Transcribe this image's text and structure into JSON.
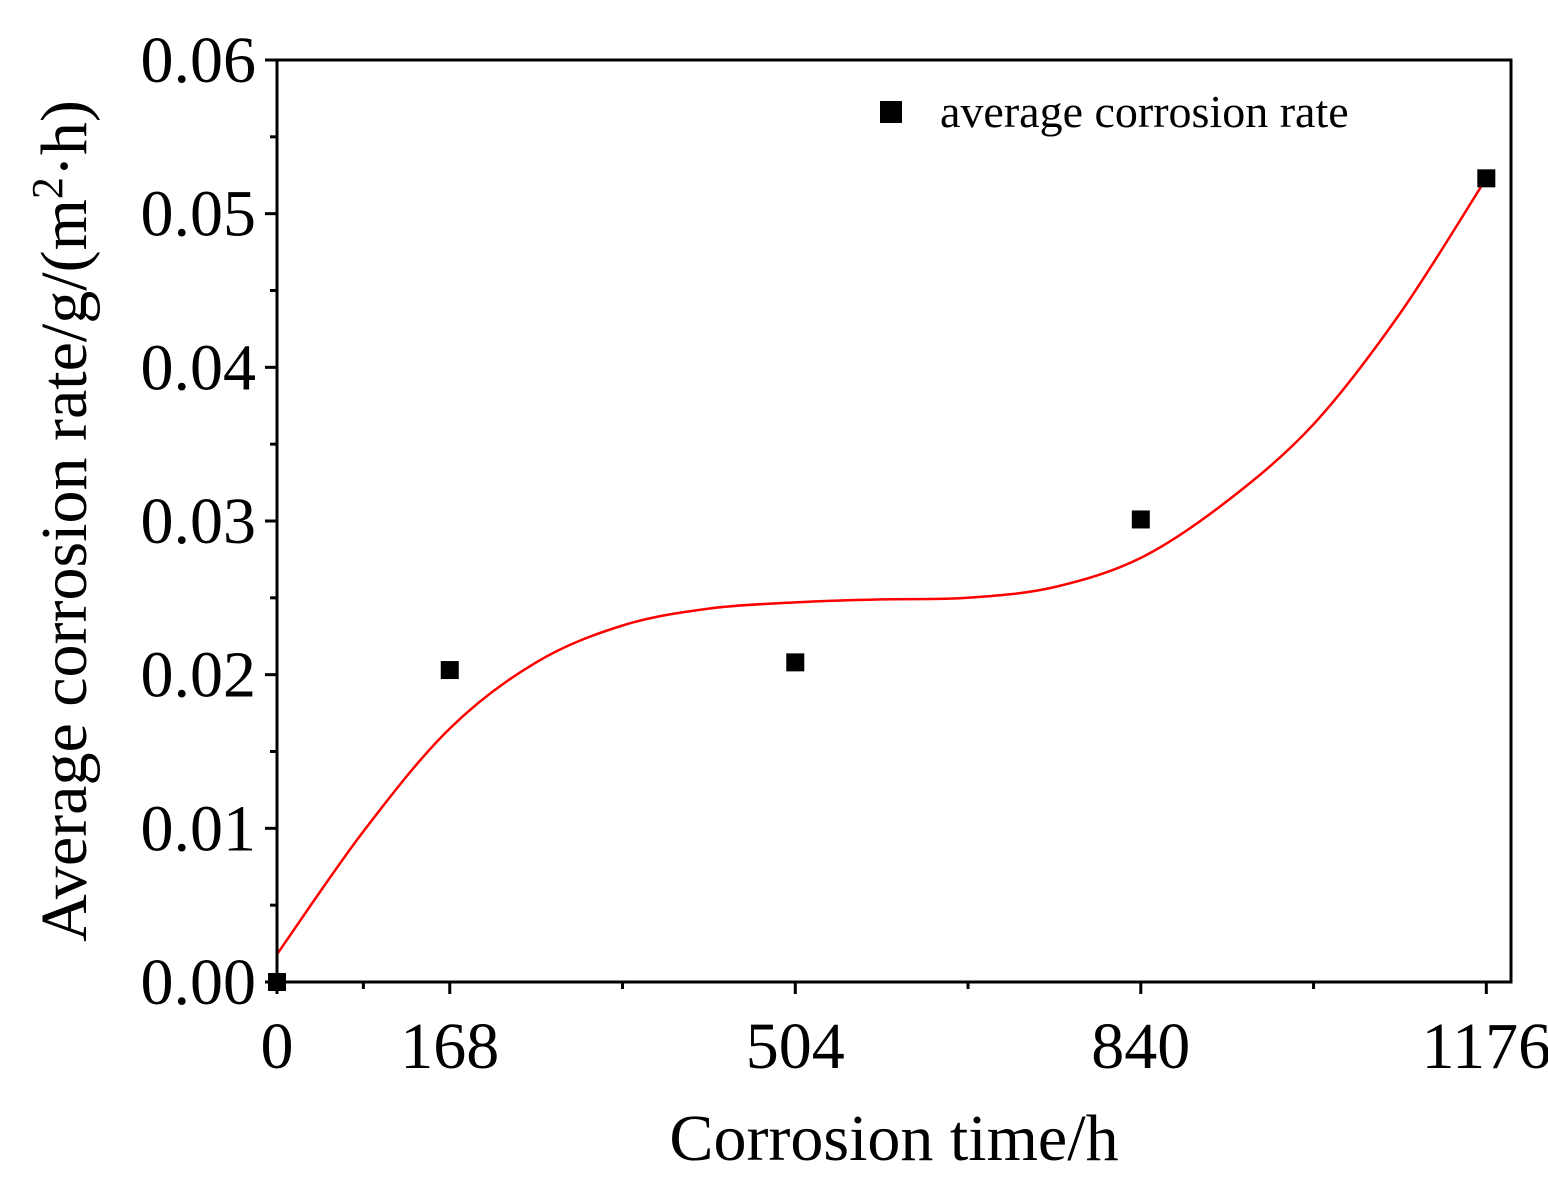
{
  "chart_data": {
    "type": "scatter",
    "title": "",
    "xlabel": "Corrosion time/h",
    "ylabel": {
      "prefix": "Average corrosion rate/g/(m",
      "superscript": "2",
      "suffix": "·h)"
    },
    "xlim": [
      0,
      1200
    ],
    "ylim": [
      0,
      0.06
    ],
    "x_ticks": [
      0,
      168,
      504,
      840,
      1176
    ],
    "x_tick_labels": [
      "0",
      "168",
      "504",
      "840",
      "1176"
    ],
    "x_minor_ticks": [
      84,
      336,
      672,
      1008
    ],
    "y_ticks": [
      0,
      0.01,
      0.02,
      0.03,
      0.04,
      0.05,
      0.06
    ],
    "y_tick_labels": [
      "0.00",
      "0.01",
      "0.02",
      "0.03",
      "0.04",
      "0.05",
      "0.06"
    ],
    "y_minor_ticks": [
      0.005,
      0.015,
      0.025,
      0.035,
      0.045,
      0.055
    ],
    "grid": false,
    "legend_position": "top-right",
    "series": [
      {
        "name": "average corrosion rate",
        "marker": "square",
        "color": "#000000",
        "x": [
          0,
          168,
          504,
          840,
          1176
        ],
        "y": [
          0.0,
          0.0203,
          0.0208,
          0.0301,
          0.0523
        ]
      }
    ],
    "fit": {
      "type": "cubic-polynomial",
      "color": "#ff0000",
      "x": [
        0,
        84,
        168,
        252,
        336,
        420,
        504,
        588,
        672,
        756,
        840,
        924,
        1008,
        1092,
        1176
      ],
      "y": [
        0.0018,
        0.0098,
        0.0165,
        0.0208,
        0.0232,
        0.0243,
        0.0247,
        0.0249,
        0.025,
        0.0257,
        0.0276,
        0.0313,
        0.0363,
        0.0435,
        0.0523
      ]
    }
  }
}
